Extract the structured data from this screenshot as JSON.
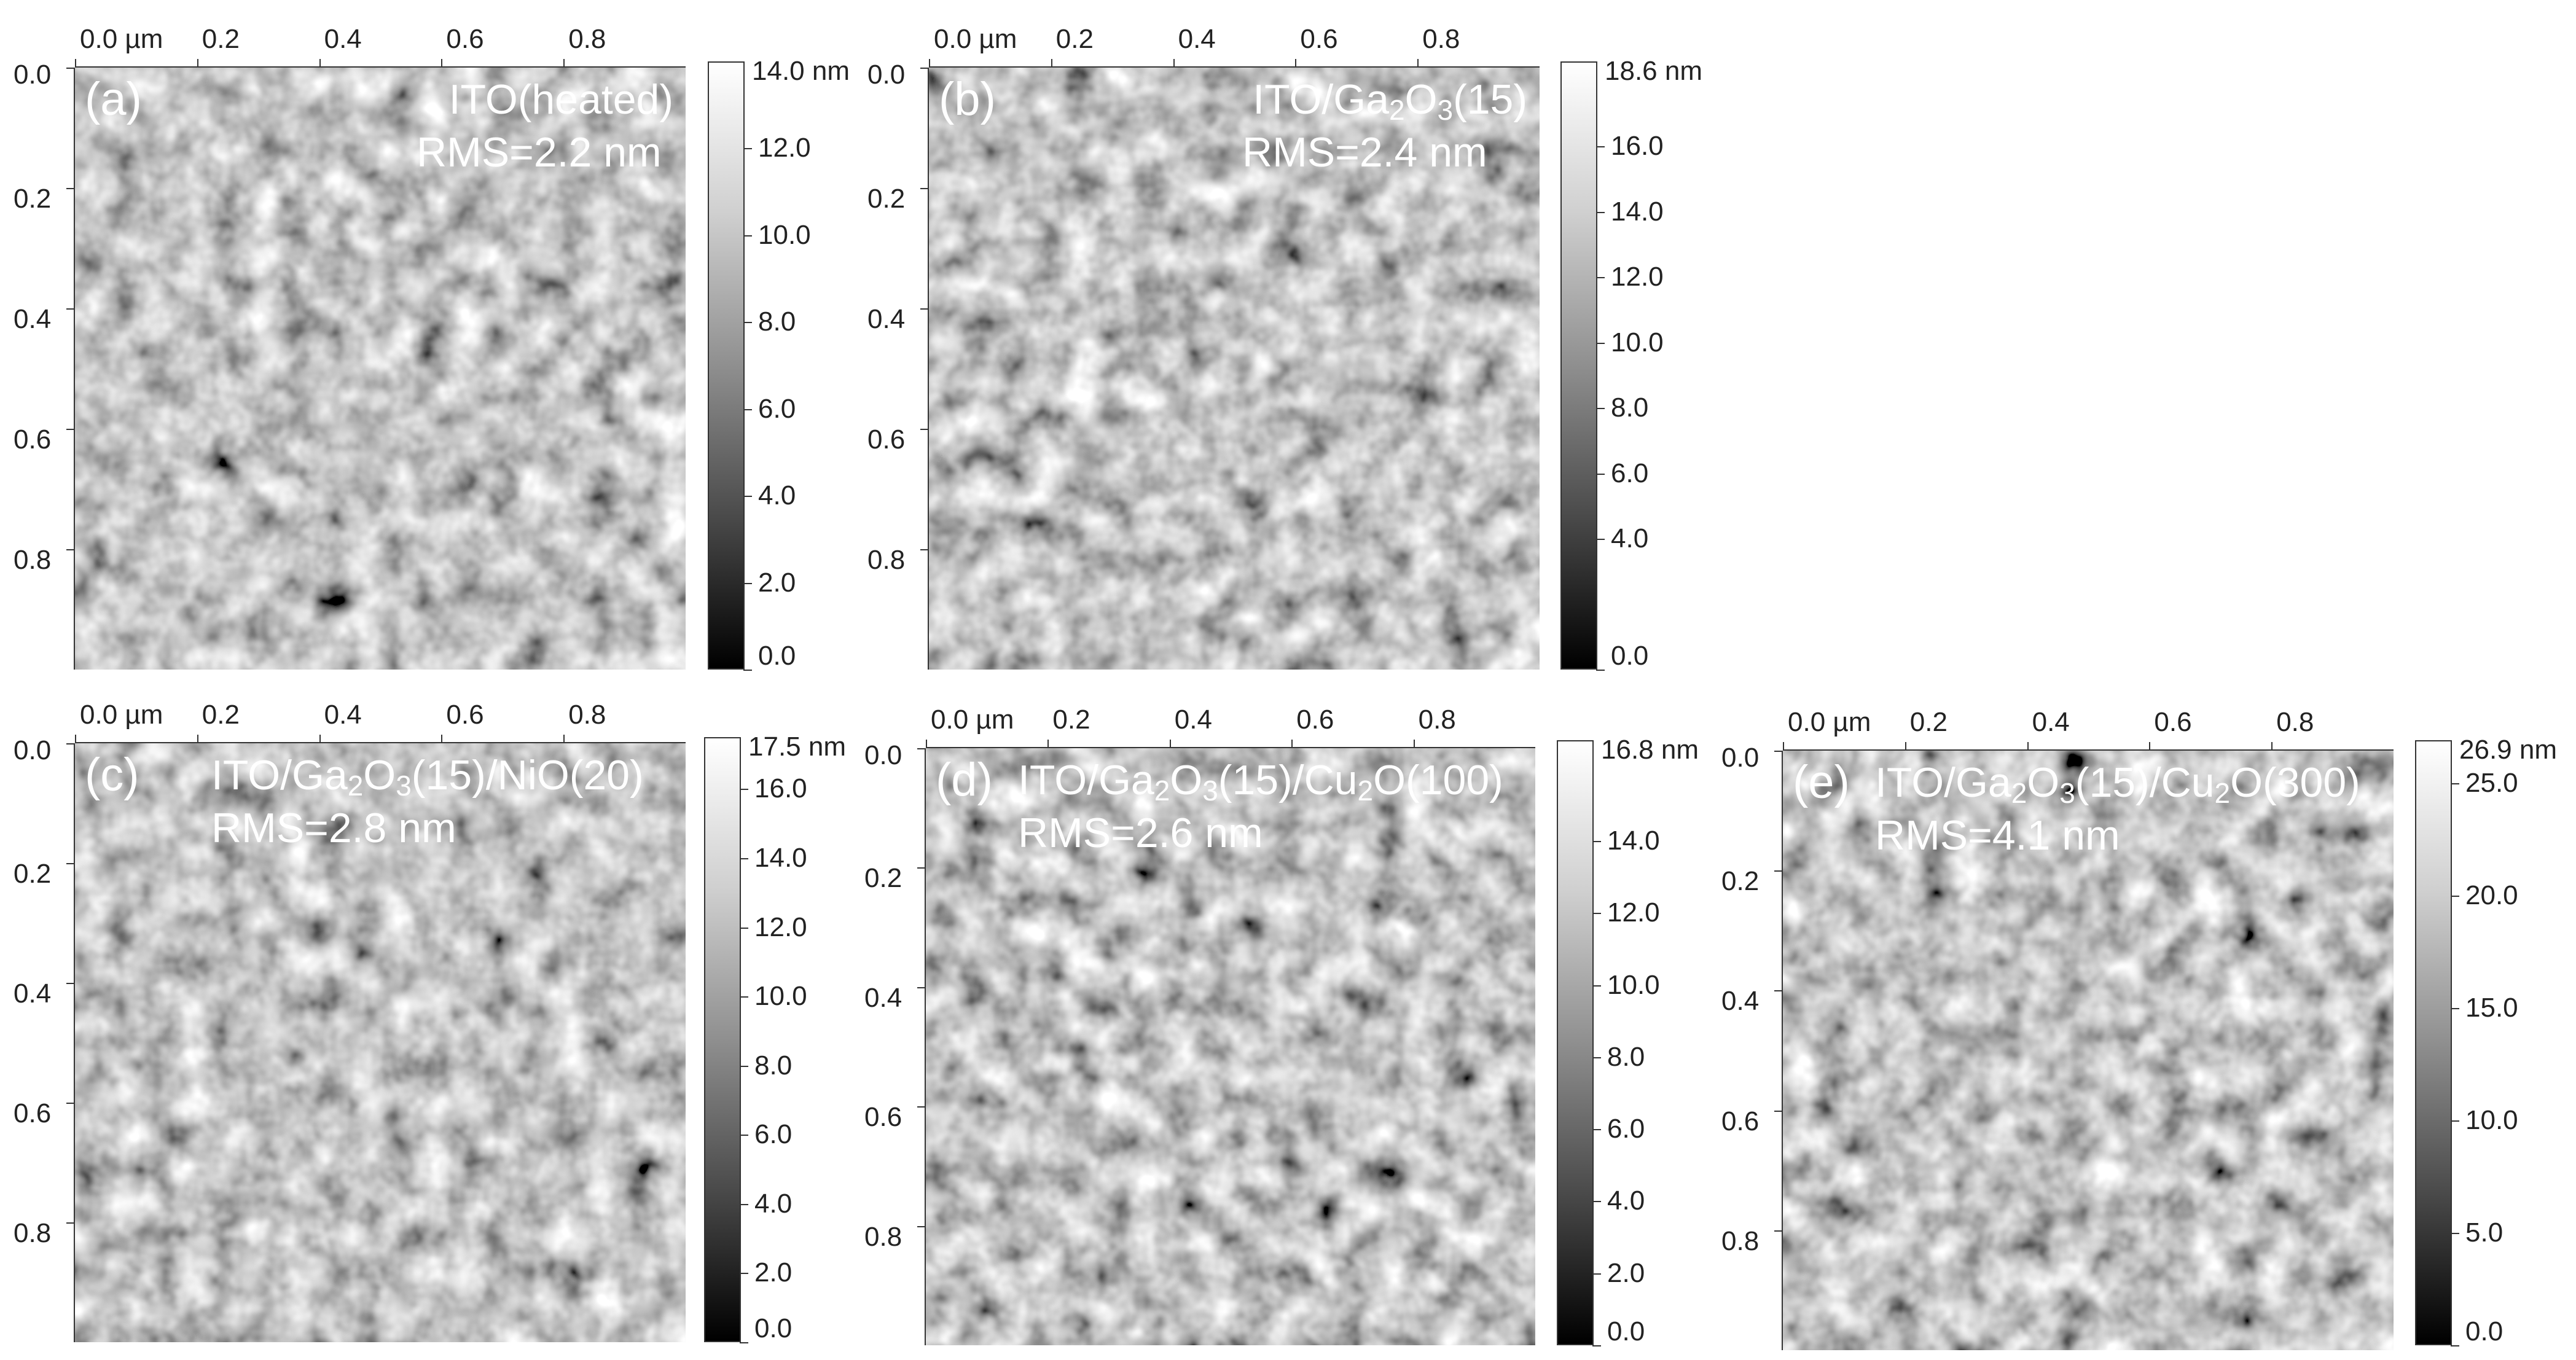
{
  "chart_data": [
    {
      "type": "heatmap",
      "panel": "(a)",
      "sample": "ITO(heated)",
      "rms": "RMS=2.2 nm",
      "x_ticks": [
        "0.0 µm",
        "0.2",
        "0.4",
        "0.6",
        "0.8"
      ],
      "y_ticks": [
        "0.0",
        "0.2",
        "0.4",
        "0.6",
        "0.8"
      ],
      "xlim": [
        0,
        1.0
      ],
      "ylim": [
        0,
        1.0
      ],
      "colorbar_max": "14.0 nm",
      "colorbar_ticks": [
        "12.0",
        "10.0",
        "8.0",
        "6.0",
        "4.0",
        "2.0",
        "0.0"
      ],
      "colorbar_range": [
        0,
        14.0
      ],
      "colormap": "grayscale"
    },
    {
      "type": "heatmap",
      "panel": "(b)",
      "sample": "ITO/Ga2O3(15)",
      "rms": "RMS=2.4 nm",
      "x_ticks": [
        "0.0 µm",
        "0.2",
        "0.4",
        "0.6",
        "0.8"
      ],
      "y_ticks": [
        "0.0",
        "0.2",
        "0.4",
        "0.6",
        "0.8"
      ],
      "xlim": [
        0,
        1.0
      ],
      "ylim": [
        0,
        1.0
      ],
      "colorbar_max": "18.6 nm",
      "colorbar_ticks": [
        "16.0",
        "14.0",
        "12.0",
        "10.0",
        "8.0",
        "6.0",
        "4.0",
        "0.0"
      ],
      "colorbar_range": [
        0,
        18.6
      ],
      "colormap": "grayscale"
    },
    {
      "type": "heatmap",
      "panel": "(c)",
      "sample": "ITO/Ga2O3(15)/NiO(20)",
      "rms": "RMS=2.8 nm",
      "x_ticks": [
        "0.0 µm",
        "0.2",
        "0.4",
        "0.6",
        "0.8"
      ],
      "y_ticks": [
        "0.0",
        "0.2",
        "0.4",
        "0.6",
        "0.8"
      ],
      "xlim": [
        0,
        1.0
      ],
      "ylim": [
        0,
        1.0
      ],
      "colorbar_max": "17.5 nm",
      "colorbar_ticks": [
        "16.0",
        "14.0",
        "12.0",
        "10.0",
        "8.0",
        "6.0",
        "4.0",
        "2.0",
        "0.0"
      ],
      "colorbar_range": [
        0,
        17.5
      ],
      "colormap": "grayscale"
    },
    {
      "type": "heatmap",
      "panel": "(d)",
      "sample": "ITO/Ga2O3(15)/Cu2O(100)",
      "rms": "RMS=2.6 nm",
      "x_ticks": [
        "0.0 µm",
        "0.2",
        "0.4",
        "0.6",
        "0.8"
      ],
      "y_ticks": [
        "0.0",
        "0.2",
        "0.4",
        "0.6",
        "0.8"
      ],
      "xlim": [
        0,
        1.0
      ],
      "ylim": [
        0,
        1.0
      ],
      "colorbar_max": "16.8 nm",
      "colorbar_ticks": [
        "14.0",
        "12.0",
        "10.0",
        "8.0",
        "6.0",
        "4.0",
        "2.0",
        "0.0"
      ],
      "colorbar_range": [
        0,
        16.8
      ],
      "colormap": "grayscale"
    },
    {
      "type": "heatmap",
      "panel": "(e)",
      "sample": "ITO/Ga2O3(15)/Cu2O(300)",
      "rms": "RMS=4.1 nm",
      "x_ticks": [
        "0.0 µm",
        "0.2",
        "0.4",
        "0.6",
        "0.8"
      ],
      "y_ticks": [
        "0.0",
        "0.2",
        "0.4",
        "0.6",
        "0.8"
      ],
      "xlim": [
        0,
        1.0
      ],
      "ylim": [
        0,
        1.0
      ],
      "colorbar_max": "26.9 nm",
      "colorbar_ticks": [
        "25.0",
        "20.0",
        "15.0",
        "10.0",
        "5.0",
        "0.0"
      ],
      "colorbar_range": [
        0,
        26.9
      ],
      "colormap": "grayscale"
    }
  ]
}
